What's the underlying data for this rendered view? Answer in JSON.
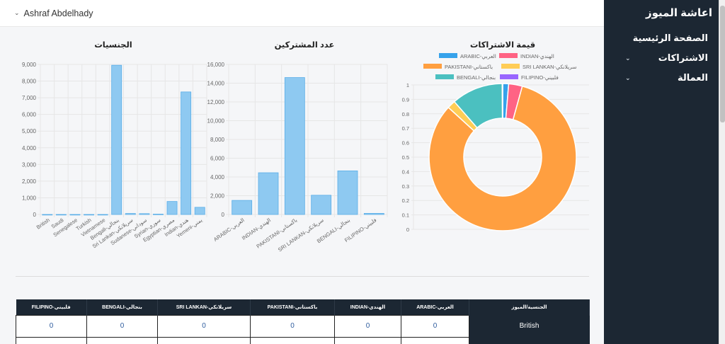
{
  "topbar": {
    "user_name": "Ashraf Abdelhady"
  },
  "sidebar": {
    "brand": "اعاشة الميوز",
    "items": [
      {
        "label": "الصفحة الرئيسية",
        "has_submenu": false
      },
      {
        "label": "الاشتراكات",
        "has_submenu": true
      },
      {
        "label": "العمالة",
        "has_submenu": true
      }
    ]
  },
  "charts": {
    "nationalities_title": "الجنسيات",
    "subscribers_title": "عدد المشتركين",
    "value_title": "قيمة الاشتراكات"
  },
  "chart_data": [
    {
      "type": "bar",
      "title": "الجنسيات",
      "categories": [
        "British",
        "Saudi",
        "Senegalese",
        "Turkish",
        "Vietnamese",
        "Bengali-بنجالي",
        "Sri Lankan-سريلانكي",
        "Sudanese-سوداني",
        "Syrian-سوري",
        "Egyptian-مصري",
        "Indian-هندي",
        "Yemeni-يمني"
      ],
      "values": [
        0,
        0,
        0,
        0,
        0,
        8950,
        60,
        50,
        20,
        780,
        7350,
        430
      ],
      "ylim": [
        0,
        9000
      ],
      "yticks": [
        "0",
        "1,000",
        "2,000",
        "3,000",
        "4,000",
        "5,000",
        "6,000",
        "7,000",
        "8,000",
        "9,000"
      ],
      "grid": true,
      "color": "#8ec9f1"
    },
    {
      "type": "bar",
      "title": "عدد المشتركين",
      "categories": [
        "ARABIC-العربي",
        "INDIAN-الهندي",
        "PAKISTANI-باكستاني",
        "SRI LANKAN-سريلانكي",
        "BENGALI-بنجالي",
        "FILIPINO-فلبيني"
      ],
      "values": [
        1500,
        4450,
        14600,
        2050,
        4650,
        120
      ],
      "ylim": [
        0,
        16000
      ],
      "yticks": [
        "0",
        "2,000",
        "4,000",
        "6,000",
        "8,000",
        "10,000",
        "12,000",
        "14,000",
        "16,000"
      ],
      "grid": true,
      "color": "#8ec9f1"
    },
    {
      "type": "pie",
      "title": "قيمة الاشتراكات",
      "labels": [
        "ARABIC-العربي",
        "INDIAN-الهندي",
        "PAKISTANI-باكستاني",
        "SRI LANKAN-سريلانكي",
        "BENGALI-بنجالي",
        "FILIPINO-فلبيني"
      ],
      "values": [
        1.3,
        3.0,
        82.5,
        1.8,
        11.3,
        0.1
      ],
      "colors": [
        "#36a2eb",
        "#ff6384",
        "#ff9f40",
        "#ffcd56",
        "#4bc0c0",
        "#9966ff"
      ],
      "donut": true,
      "legend": "top",
      "yticks": [
        "0",
        "0.1",
        "0.2",
        "0.3",
        "0.4",
        "0.5",
        "0.6",
        "0.7",
        "0.8",
        "0.9",
        "1"
      ],
      "grid": true
    }
  ],
  "table": {
    "headers": [
      "FILIPINO-فلبيني",
      "BENGALI-بنجالي",
      "SRI LANKAN-سريلانكي",
      "PAKISTANI-باكستاني",
      "INDIAN-الهندي",
      "ARABIC-العربي",
      "الجنسية/الميوز"
    ],
    "rows": [
      [
        "0",
        "0",
        "0",
        "0",
        "0",
        "0",
        "British"
      ]
    ]
  }
}
